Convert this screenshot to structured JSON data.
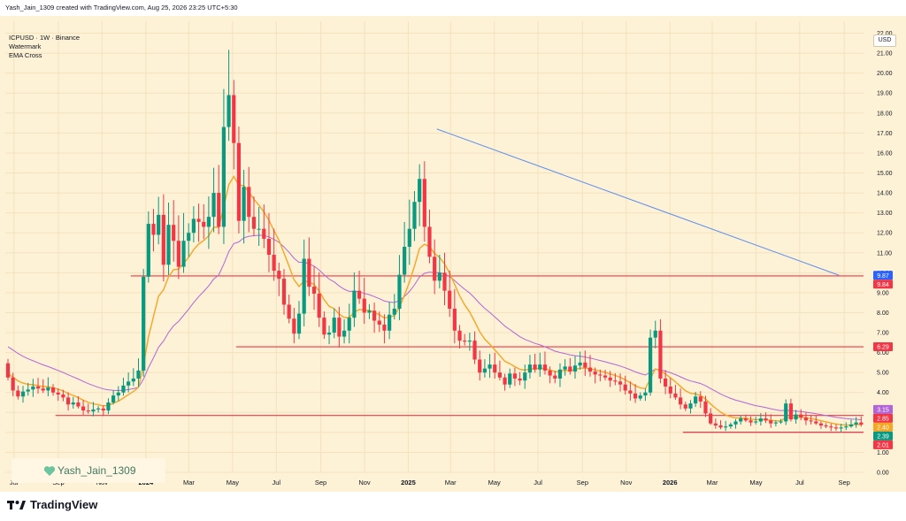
{
  "header": {
    "attribution": "Yash_Jain_1309 created with TradingView.com, Aug 25, 2026 23:25 UTC+5:30"
  },
  "legend": {
    "symbol": "ICPUSD · 1W · Binance",
    "line2": "Watermark",
    "line3": "EMA Cross"
  },
  "currency_button": "USD",
  "watermark_text": "Yash_Jain_1309",
  "brand": {
    "name": "TradingView",
    "logo_icon": "tradingview-logo-icon"
  },
  "colors": {
    "up": "#089981",
    "down": "#f23645",
    "ema_fast": "#f5a623",
    "ema_slow": "#b266d6",
    "trendline": "#5b8def",
    "hline": "#f23645",
    "background": "#fdf1d6"
  },
  "chart_data": {
    "type": "candlestick",
    "title": "ICPUSD · 1W · Binance",
    "y_range": [
      0,
      22.6
    ],
    "y_ticks": [
      0,
      1,
      2,
      3,
      4,
      5,
      6,
      7,
      8,
      9,
      10,
      11,
      12,
      13,
      14,
      15,
      16,
      17,
      18,
      19,
      20,
      21,
      22
    ],
    "x_range": [
      "2023-06-19",
      "2026-09-28"
    ],
    "x_ticks": [
      {
        "date": "2023-07-01",
        "label": "Jul"
      },
      {
        "date": "2023-09-01",
        "label": "Sep"
      },
      {
        "date": "2023-11-01",
        "label": "Nov"
      },
      {
        "date": "2024-01-01",
        "label": "2024"
      },
      {
        "date": "2024-03-01",
        "label": "Mar"
      },
      {
        "date": "2024-05-01",
        "label": "May"
      },
      {
        "date": "2024-07-01",
        "label": "Jul"
      },
      {
        "date": "2024-09-01",
        "label": "Sep"
      },
      {
        "date": "2024-11-01",
        "label": "Nov"
      },
      {
        "date": "2025-01-01",
        "label": "2025"
      },
      {
        "date": "2025-03-01",
        "label": "Mar"
      },
      {
        "date": "2025-05-01",
        "label": "May"
      },
      {
        "date": "2025-07-01",
        "label": "Jul"
      },
      {
        "date": "2025-09-01",
        "label": "Sep"
      },
      {
        "date": "2025-11-01",
        "label": "Nov"
      },
      {
        "date": "2026-01-01",
        "label": "2026"
      },
      {
        "date": "2026-03-01",
        "label": "Mar"
      },
      {
        "date": "2026-05-01",
        "label": "May"
      },
      {
        "date": "2026-07-01",
        "label": "Jul"
      },
      {
        "date": "2026-09-01",
        "label": "Sep"
      }
    ],
    "candle_closes": [
      4.75,
      4.1,
      3.8,
      4.05,
      4.15,
      4.3,
      4.2,
      4.1,
      4.25,
      4.0,
      3.9,
      3.75,
      3.4,
      3.5,
      3.3,
      3.1,
      3.05,
      3.15,
      3.2,
      3.1,
      3.5,
      3.85,
      4.0,
      4.35,
      4.55,
      4.7,
      5.1,
      9.8,
      12.45,
      11.9,
      12.9,
      10.4,
      12.4,
      11.6,
      10.3,
      11.6,
      12.0,
      12.7,
      12.55,
      12.3,
      12.8,
      14.0,
      12.3,
      17.3,
      18.9,
      16.5,
      12.6,
      14.3,
      12.8,
      12.2,
      12.2,
      11.7,
      10.9,
      10.1,
      9.7,
      8.4,
      7.7,
      6.95,
      7.95,
      10.7,
      9.3,
      8.95,
      7.75,
      6.9,
      7.0,
      7.75,
      6.8,
      7.1,
      7.75,
      9.1,
      8.7,
      8.0,
      8.1,
      7.6,
      7.4,
      7.1,
      7.9,
      8.2,
      9.9,
      11.3,
      12.2,
      13.55,
      14.7,
      12.3,
      10.8,
      9.6,
      10.0,
      9.1,
      8.2,
      7.1,
      6.6,
      6.55,
      6.6,
      5.65,
      5.0,
      5.2,
      5.4,
      5.0,
      4.75,
      4.4,
      4.95,
      4.7,
      4.6,
      5.0,
      5.4,
      5.15,
      5.4,
      5.1,
      4.85,
      4.7,
      5.15,
      5.3,
      5.05,
      5.35,
      5.5,
      5.25,
      5.05,
      4.9,
      4.85,
      4.75,
      4.6,
      4.55,
      4.4,
      4.1,
      3.95,
      3.7,
      3.85,
      4.0,
      6.75,
      7.1,
      4.7,
      4.3,
      3.95,
      3.75,
      3.4,
      3.2,
      3.45,
      3.8,
      3.55,
      2.95,
      2.45,
      2.35,
      2.25,
      2.3,
      2.4,
      2.55,
      2.7,
      2.6,
      2.5,
      2.55,
      2.7,
      2.6,
      2.45,
      2.5,
      2.55,
      3.45,
      2.65,
      2.9,
      2.75,
      2.6,
      2.55,
      2.45,
      2.35,
      2.3,
      2.25,
      2.2,
      2.25,
      2.3,
      2.4,
      2.5,
      2.39
    ],
    "ema_fast_label": "2.40",
    "ema_slow_label": "3.15",
    "trendline": {
      "from": {
        "date": "2025-02-10",
        "price": 17.2
      },
      "to": {
        "date": "2026-08-25",
        "price": 9.87
      }
    },
    "horizontal_lines": [
      {
        "price": 9.84,
        "label": "9.84"
      },
      {
        "price": 6.29,
        "label": "6.29"
      },
      {
        "price": 2.85,
        "label": "2.85"
      },
      {
        "price": 2.01,
        "label": "2.01"
      }
    ],
    "price_labels": [
      {
        "value": "9.87",
        "price": 9.87,
        "color": "#2962ff"
      },
      {
        "value": "9.84",
        "price": 9.84,
        "color": "#f23645"
      },
      {
        "value": "6.29",
        "price": 6.29,
        "color": "#f23645"
      },
      {
        "value": "3.15",
        "price": 3.15,
        "color": "#b266d6"
      },
      {
        "value": "2.85",
        "price": 2.85,
        "color": "#f23645"
      },
      {
        "value": "2.40",
        "price": 2.4,
        "color": "#f5a623"
      },
      {
        "value": "2.39",
        "price": 2.39,
        "color": "#089981"
      },
      {
        "value": "2.01",
        "price": 2.01,
        "color": "#f23645"
      }
    ]
  }
}
